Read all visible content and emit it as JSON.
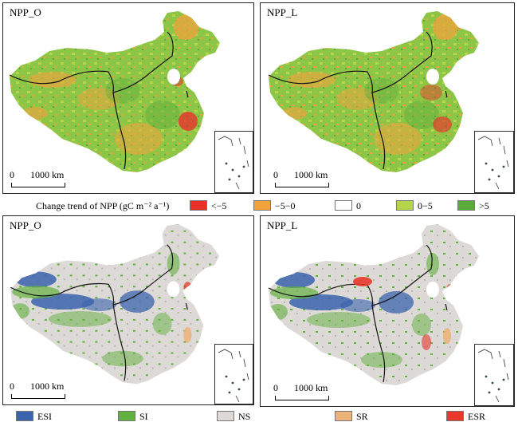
{
  "panels": [
    {
      "title": "NPP_O",
      "map_type": "trend"
    },
    {
      "title": "NPP_L",
      "map_type": "trend"
    },
    {
      "title": "NPP_O",
      "map_type": "significance"
    },
    {
      "title": "NPP_L",
      "map_type": "significance"
    }
  ],
  "scalebar": {
    "zero": "0",
    "distance": "1000 km"
  },
  "trend_legend": {
    "title": "Change trend of NPP (gC m⁻² a⁻¹)",
    "classes": [
      {
        "label": "<−5",
        "color": "#e8312a"
      },
      {
        "label": "−5−0",
        "color": "#f2a23c"
      },
      {
        "label": "0",
        "color": "#ffffff"
      },
      {
        "label": "0−5",
        "color": "#b5d54a"
      },
      {
        "label": ">5",
        "color": "#5aab3c"
      }
    ]
  },
  "significance_legend": {
    "classes": [
      {
        "label": "ESI",
        "color": "#3c63ad"
      },
      {
        "label": "SI",
        "color": "#62b03e"
      },
      {
        "label": "NS",
        "color": "#dcd9d6"
      },
      {
        "label": "SR",
        "color": "#ebb27c"
      },
      {
        "label": "ESR",
        "color": "#e8392c"
      }
    ]
  }
}
